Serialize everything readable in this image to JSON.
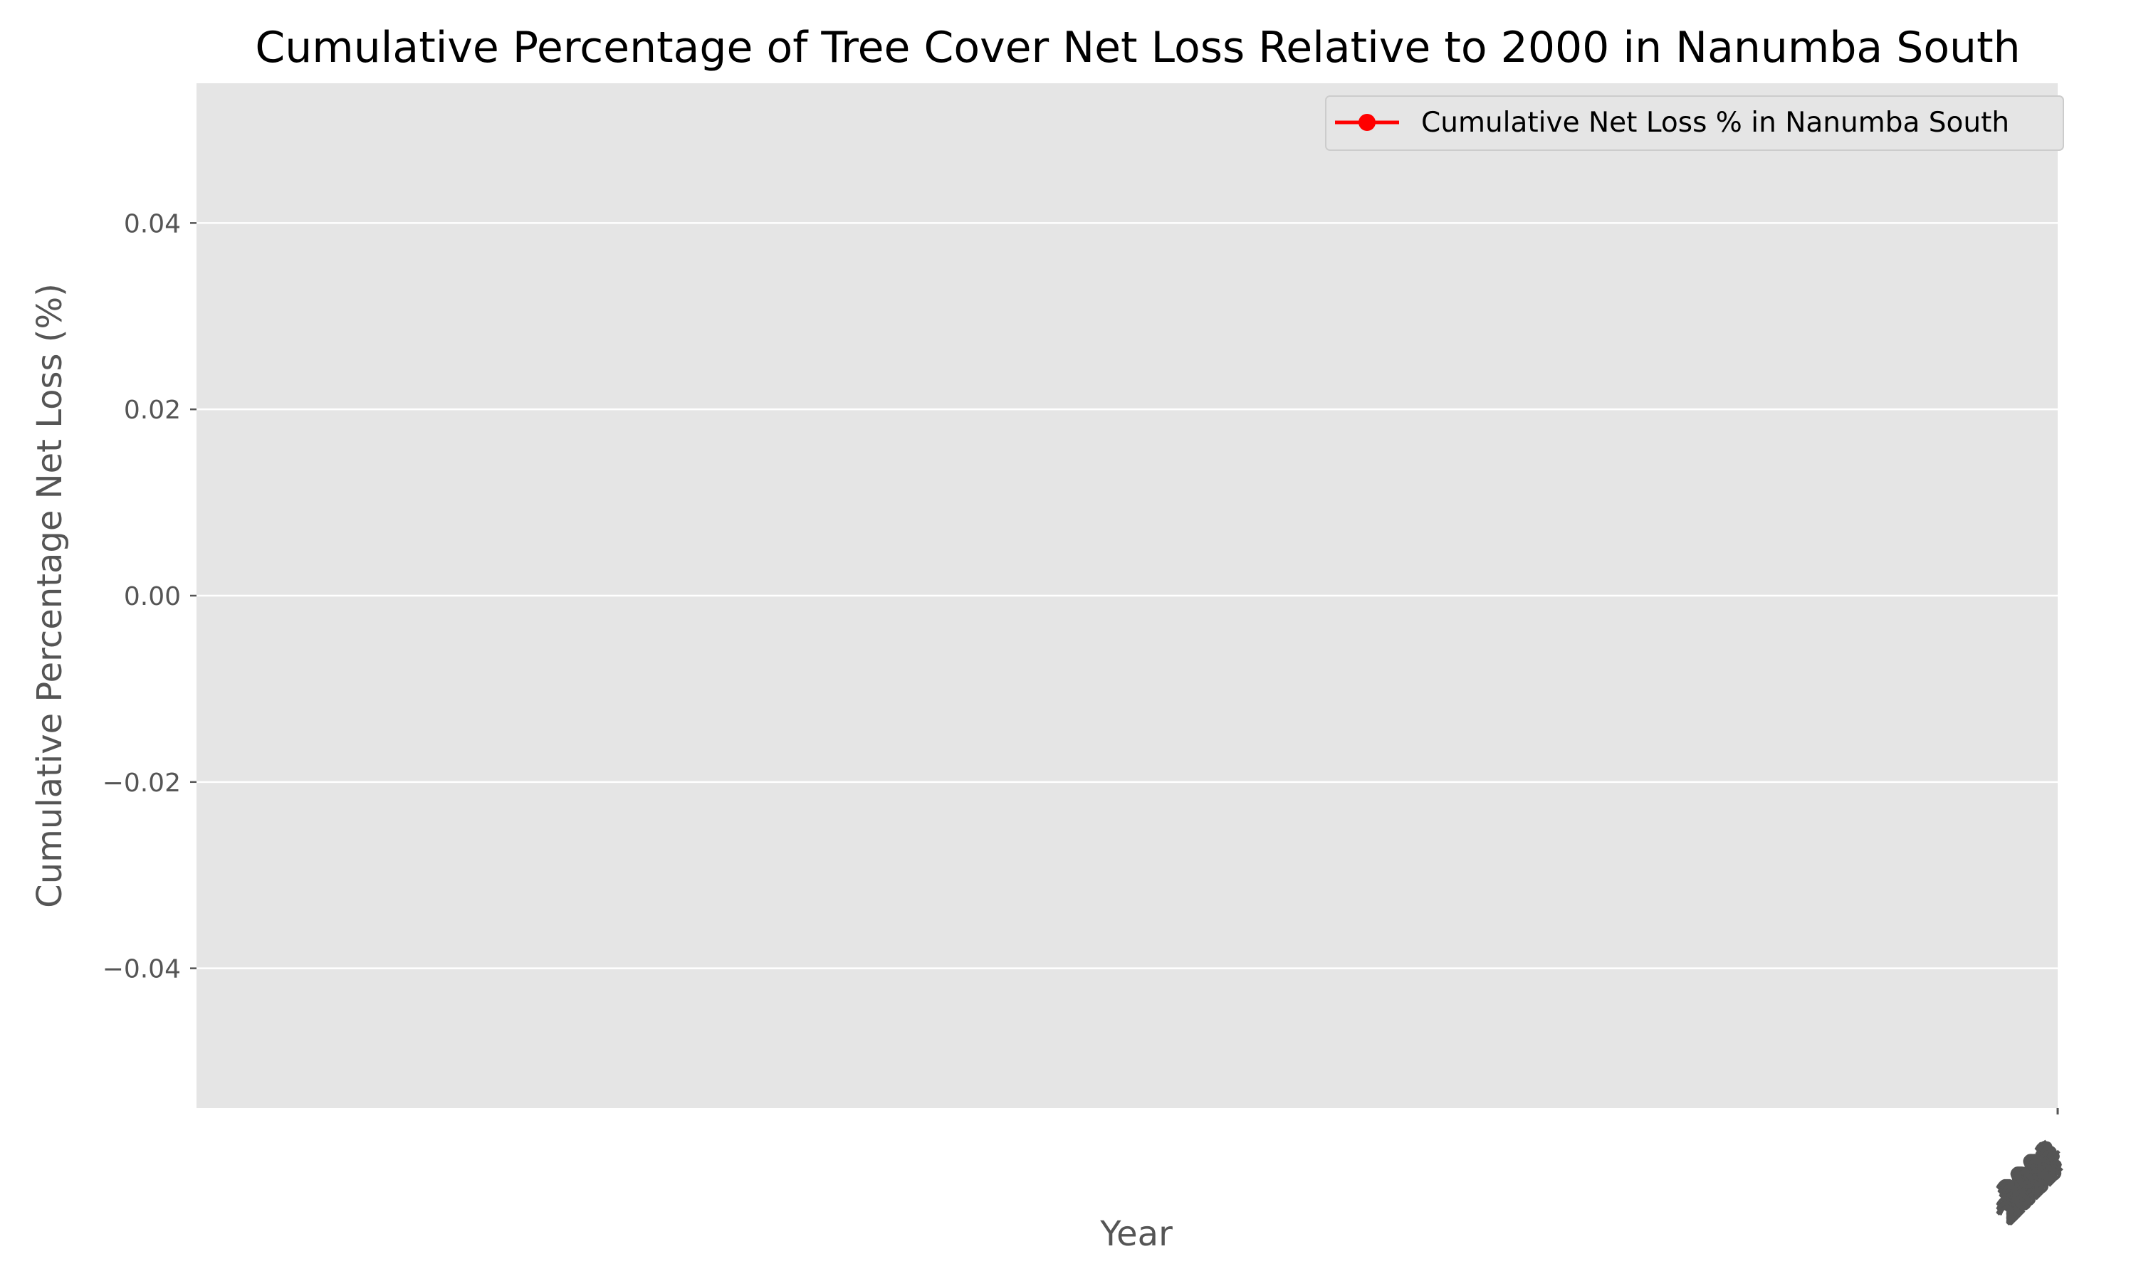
{
  "chart_data": {
    "type": "line",
    "title": "Cumulative Percentage of Tree Cover Net Loss Relative to 2000 in Nanumba South",
    "xlabel": "Year",
    "ylabel": "Cumulative Percentage Net Loss (%)",
    "ylim": [
      -0.055,
      0.055
    ],
    "y_ticks": [
      {
        "value": 0.04,
        "label": "0.04"
      },
      {
        "value": 0.02,
        "label": "0.02"
      },
      {
        "value": 0.0,
        "label": "0.00"
      },
      {
        "value": -0.02,
        "label": "−0.02"
      },
      {
        "value": -0.04,
        "label": "−0.04"
      }
    ],
    "x_tick_labels": [
      "2001",
      "2002",
      "2003",
      "2004",
      "2005",
      "2006",
      "2007",
      "2008",
      "2009",
      "2010",
      "2011",
      "2012",
      "2013",
      "2014",
      "2015",
      "2016",
      "2017",
      "2018",
      "2019",
      "2020",
      "2021",
      "2022",
      "2023"
    ],
    "series": [
      {
        "name": "Cumulative Net Loss % in Nanumba South",
        "color": "#ff0000",
        "marker": "circle",
        "values": []
      }
    ],
    "legend": {
      "placement": "top-right"
    },
    "grid": true,
    "background_color": "#e5e5e5",
    "grid_color": "#ffffff"
  }
}
